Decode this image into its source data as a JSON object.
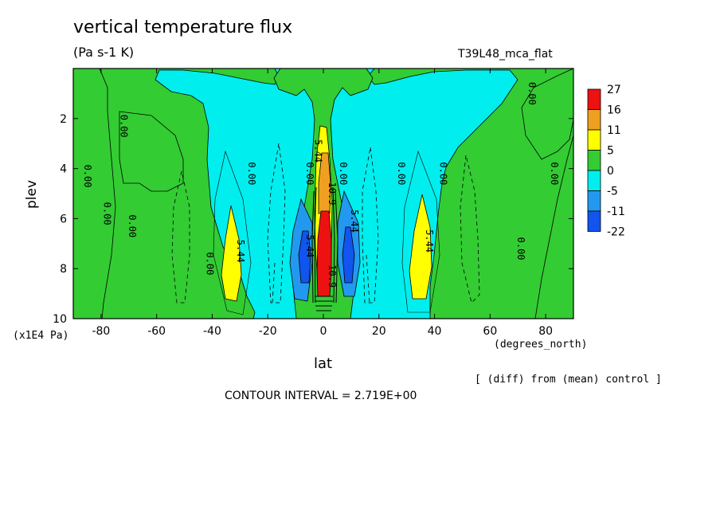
{
  "chart_data": {
    "type": "heatmap",
    "title": "vertical temperature flux",
    "subtitle": "(Pa s-1 K)",
    "run_label": "T39L48_mca_flat",
    "xlabel": "lat",
    "x_units": "(degrees_north)",
    "ylabel": "plev",
    "y_units": "(x1E4 Pa)",
    "xlim": [
      -90,
      90
    ],
    "ylim": [
      10,
      0
    ],
    "x_ticks": [
      -80,
      -60,
      -40,
      -20,
      0,
      20,
      40,
      60,
      80
    ],
    "y_ticks": [
      2,
      4,
      6,
      8,
      10
    ],
    "note": "[ (diff) from (mean) control ]",
    "contour_interval": "CONTOUR INTERVAL = 2.719E+00",
    "colorbar": {
      "levels": [
        "27",
        "16",
        "11",
        "5",
        "0",
        "-5",
        "-11",
        "-22"
      ],
      "colors": [
        "#ee1111",
        "#f0a020",
        "#ffff00",
        "#33cc33",
        "#00eeee",
        "#2299ee",
        "#1155ee"
      ]
    },
    "contour_labels": [
      {
        "text": "0.00",
        "lat": -86,
        "plev": 4.3
      },
      {
        "text": "0.00",
        "lat": -79,
        "plev": 5.8
      },
      {
        "text": "0.00",
        "lat": -73,
        "plev": 2.3
      },
      {
        "text": "0.00",
        "lat": -70,
        "plev": 6.3
      },
      {
        "text": "0.00",
        "lat": -42,
        "plev": 7.8
      },
      {
        "text": "0.00",
        "lat": -27,
        "plev": 4.2
      },
      {
        "text": "0.00",
        "lat": -6,
        "plev": 4.2
      },
      {
        "text": "0.00",
        "lat": 6,
        "plev": 4.2
      },
      {
        "text": "0.00",
        "lat": 27,
        "plev": 4.2
      },
      {
        "text": "0.00",
        "lat": 42,
        "plev": 4.2
      },
      {
        "text": "0.00",
        "lat": 70,
        "plev": 7.2
      },
      {
        "text": "0.00",
        "lat": 74,
        "plev": 1.0
      },
      {
        "text": "0.00",
        "lat": 82,
        "plev": 4.2
      },
      {
        "text": "5.44",
        "lat": -31,
        "plev": 7.3
      },
      {
        "text": "5.44",
        "lat": 37,
        "plev": 6.9
      },
      {
        "text": "5.44",
        "lat": -6,
        "plev": 7.1
      },
      {
        "text": "5.44",
        "lat": 10,
        "plev": 6.1
      },
      {
        "text": "5.44",
        "lat": -3,
        "plev": 3.3
      },
      {
        "text": "10.9",
        "lat": 2,
        "plev": 5.0
      },
      {
        "text": "10.9",
        "lat": 2,
        "plev": 8.3
      }
    ]
  }
}
